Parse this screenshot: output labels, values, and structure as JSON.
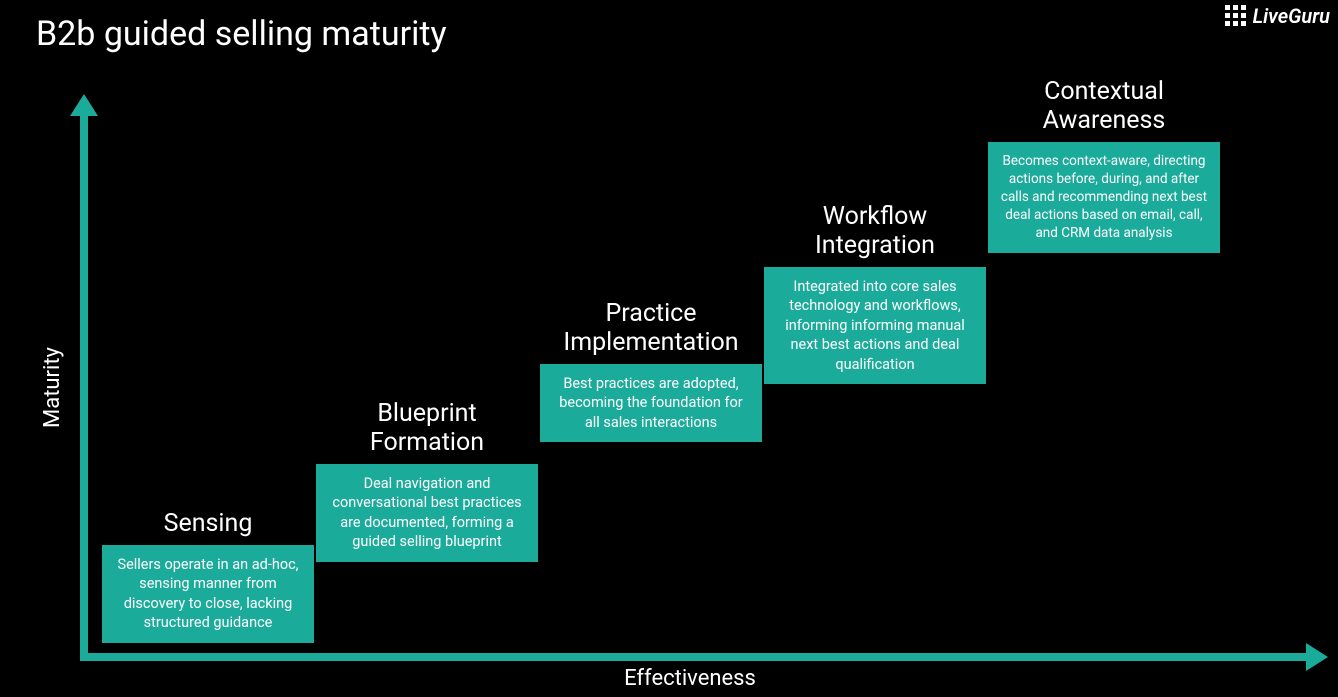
{
  "title": "B2b guided selling maturity",
  "brand": "LiveGuru",
  "colors": {
    "background": "#000000",
    "accent": "#1aab9b",
    "text": "#ffffff"
  },
  "axes": {
    "y_label": "Maturity",
    "x_label": "Effectiveness"
  },
  "maturity_steps": {
    "type": "staircase",
    "steps": [
      {
        "title": "Sensing",
        "body": "Sellers operate in an ad-hoc, sensing manner from discovery to close, lacking structured guidance"
      },
      {
        "title": "Blueprint\nFormation",
        "body": "Deal navigation and conversational best practices are documented, forming a guided selling blueprint"
      },
      {
        "title": "Practice\nImplementation",
        "body": "Best practices are adopted, becoming the foundation for all sales interactions"
      },
      {
        "title": "Workflow\nIntegration",
        "body": "Integrated into core sales technology and workflows, informing informing manual next best actions and deal qualification"
      },
      {
        "title": "Contextual\nAwareness",
        "body": "Becomes context-aware, directing actions before, during, and after calls and recommending next best deal actions based on email, call, and CRM data analysis"
      }
    ]
  }
}
